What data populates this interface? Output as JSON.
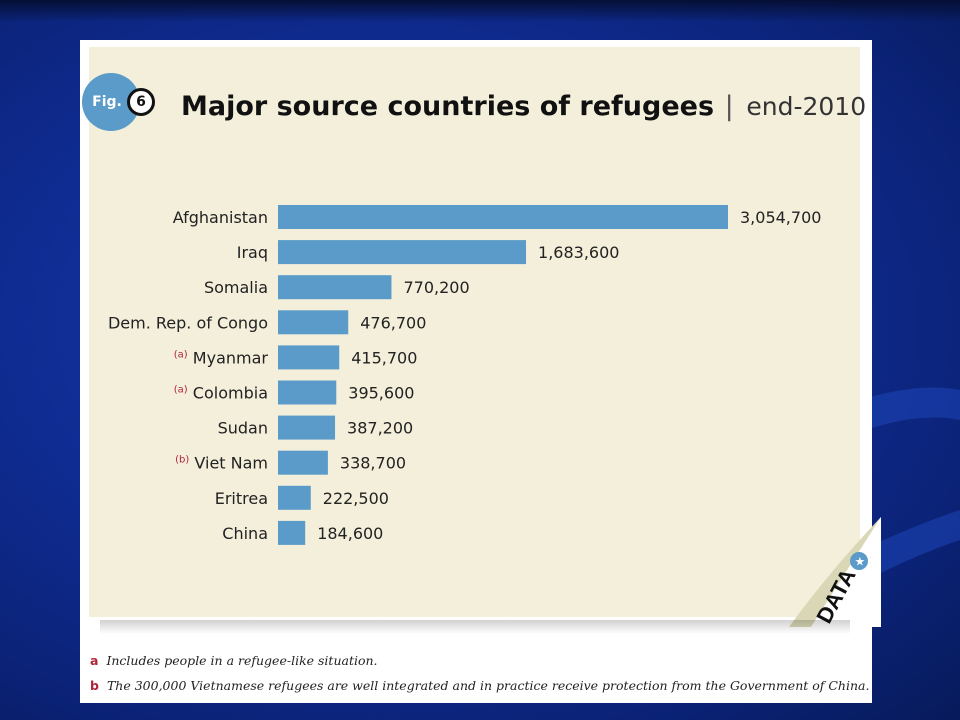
{
  "fig_label": "Fig.",
  "fig_number": "6",
  "title": "Major source countries of refugees",
  "title_separator": "|",
  "subtitle": "end-2010",
  "data_badge": "DATA",
  "bar_color": "#5b9bc9",
  "note_marker_color": "#b0253a",
  "chart_data": {
    "type": "bar",
    "orientation": "horizontal",
    "title": "Major source countries of refugees",
    "subtitle": "end-2010",
    "categories": [
      "Afghanistan",
      "Iraq",
      "Somalia",
      "Dem. Rep. of Congo",
      "Myanmar",
      "Colombia",
      "Sudan",
      "Viet Nam",
      "Eritrea",
      "China"
    ],
    "markers": [
      "",
      "",
      "",
      "",
      "(a)",
      "(a)",
      "",
      "(b)",
      "",
      ""
    ],
    "values": [
      3054700,
      1683600,
      770200,
      476700,
      415700,
      395600,
      387200,
      338700,
      222500,
      184600
    ],
    "value_labels": [
      "3,054,700",
      "1,683,600",
      "770,200",
      "476,700",
      "415,700",
      "395,600",
      "387,200",
      "338,700",
      "222,500",
      "184,600"
    ],
    "xlim": [
      0,
      3054700
    ],
    "grid": false,
    "legend": "none"
  },
  "footnotes": [
    {
      "letter": "a",
      "text": "Includes people in a refugee-like situation."
    },
    {
      "letter": "b",
      "text": "The 300,000 Vietnamese refugees are well integrated and in practice receive protection from the Government of China."
    }
  ]
}
